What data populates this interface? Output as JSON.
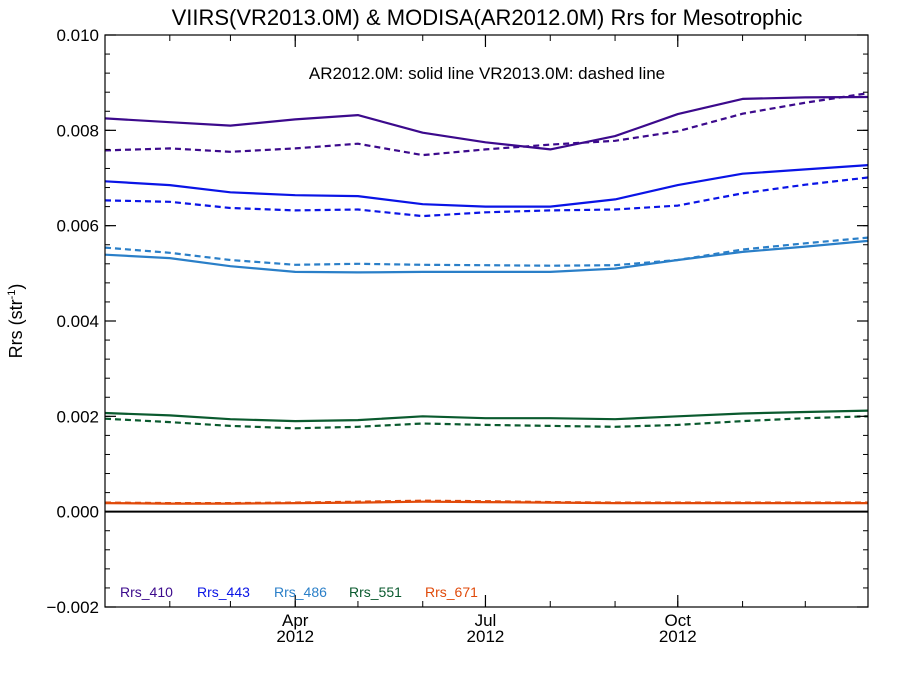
{
  "chart_data": {
    "type": "line",
    "title": "VIIRS(VR2013.0M) & MODISA(AR2012.0M)  Rrs for Mesotrophic",
    "annotation": "AR2012.0M: solid line   VR2013.0M: dashed line",
    "ylabel_main": "Rrs (str",
    "ylabel_sup": "-1",
    "ylabel_close": ")",
    "ylim": [
      -0.002,
      0.01
    ],
    "yticks": [
      -0.002,
      0.0,
      0.002,
      0.004,
      0.006,
      0.008,
      0.01
    ],
    "ytick_labels": [
      "−0.002",
      "0.000",
      "0.002",
      "0.004",
      "0.006",
      "0.008",
      "0.010"
    ],
    "xlim": [
      "2012-01-01",
      "2012-12-31"
    ],
    "xticks": [
      {
        "date": "2012-04-01",
        "label": "Apr",
        "year": "2012"
      },
      {
        "date": "2012-07-01",
        "label": "Jul",
        "year": "2012"
      },
      {
        "date": "2012-10-01",
        "label": "Oct",
        "year": "2012"
      }
    ],
    "x": [
      "2012-01-01",
      "2012-02-01",
      "2012-03-01",
      "2012-04-01",
      "2012-05-01",
      "2012-06-01",
      "2012-07-01",
      "2012-08-01",
      "2012-09-01",
      "2012-10-01",
      "2012-11-01",
      "2012-12-01",
      "2012-12-31"
    ],
    "zero_line": 0.0,
    "series": [
      {
        "name": "Rrs_410",
        "color": "#3c0a8c",
        "style": "solid",
        "values": [
          0.00825,
          0.00817,
          0.0081,
          0.00823,
          0.00832,
          0.00795,
          0.00775,
          0.0076,
          0.00788,
          0.00834,
          0.00866,
          0.00869,
          0.0087
        ]
      },
      {
        "name": "",
        "color": "#3c0a8c",
        "style": "dashed",
        "values": [
          0.00758,
          0.00762,
          0.00755,
          0.00762,
          0.00772,
          0.00748,
          0.0076,
          0.0077,
          0.00778,
          0.00798,
          0.00835,
          0.00858,
          0.00878
        ]
      },
      {
        "name": "Rrs_443",
        "color": "#0a14e6",
        "style": "solid",
        "values": [
          0.00693,
          0.00685,
          0.0067,
          0.00664,
          0.00662,
          0.00645,
          0.0064,
          0.0064,
          0.00655,
          0.00685,
          0.00709,
          0.00718,
          0.00727
        ]
      },
      {
        "name": "",
        "color": "#0a14e6",
        "style": "dashed",
        "values": [
          0.00653,
          0.0065,
          0.00637,
          0.00632,
          0.00634,
          0.0062,
          0.00628,
          0.00632,
          0.00634,
          0.00642,
          0.00668,
          0.00686,
          0.00701
        ]
      },
      {
        "name": "Rrs_486",
        "color": "#2a7fc8",
        "style": "solid",
        "values": [
          0.00539,
          0.00532,
          0.00515,
          0.00503,
          0.00502,
          0.00503,
          0.00503,
          0.00503,
          0.0051,
          0.00528,
          0.00545,
          0.00556,
          0.00568
        ]
      },
      {
        "name": "",
        "color": "#2a7fc8",
        "style": "dashed",
        "values": [
          0.00554,
          0.00543,
          0.00528,
          0.00518,
          0.0052,
          0.00518,
          0.00517,
          0.00516,
          0.00517,
          0.00528,
          0.0055,
          0.00563,
          0.00575
        ]
      },
      {
        "name": "Rrs_551",
        "color": "#0a5a2e",
        "style": "solid",
        "values": [
          0.00207,
          0.00202,
          0.00194,
          0.0019,
          0.00192,
          0.002,
          0.00196,
          0.00196,
          0.00194,
          0.002,
          0.00206,
          0.00209,
          0.00212
        ]
      },
      {
        "name": "",
        "color": "#0a5a2e",
        "style": "dashed",
        "values": [
          0.00195,
          0.00188,
          0.0018,
          0.00175,
          0.00178,
          0.00185,
          0.00182,
          0.0018,
          0.00178,
          0.00182,
          0.0019,
          0.00196,
          0.002
        ]
      },
      {
        "name": "Rrs_671",
        "color": "#e04a0a",
        "style": "solid",
        "values": [
          0.00018,
          0.00017,
          0.00017,
          0.00018,
          0.00019,
          0.00021,
          0.0002,
          0.00019,
          0.00018,
          0.00018,
          0.00018,
          0.00018,
          0.00018
        ]
      },
      {
        "name": "",
        "color": "#e04a0a",
        "style": "dashed",
        "values": [
          0.00019,
          0.00018,
          0.00018,
          0.00019,
          0.00021,
          0.00023,
          0.00022,
          0.0002,
          0.00019,
          0.00019,
          0.00019,
          0.00019,
          0.00019
        ]
      }
    ],
    "legend": [
      {
        "label": "Rrs_410",
        "color": "#3c0a8c"
      },
      {
        "label": "Rrs_443",
        "color": "#0a14e6"
      },
      {
        "label": "Rrs_486",
        "color": "#2a7fc8"
      },
      {
        "label": "Rrs_551",
        "color": "#0a5a2e"
      },
      {
        "label": "Rrs_671",
        "color": "#e04a0a"
      }
    ],
    "legend_placement": "bottom-left",
    "grid": false
  }
}
